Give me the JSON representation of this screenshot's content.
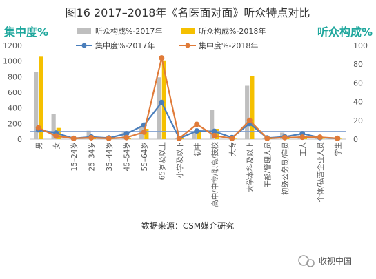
{
  "chart_data": {
    "type": "bar",
    "title": "图16 2017–2018年《名医面对面》听众特点对比",
    "left_axis_title": "集中度%",
    "right_axis_title": "听众构成%",
    "source": "数据来源：CSM媒介研究",
    "watermark": "收视中国",
    "categories": [
      "男",
      "女",
      "15–24岁",
      "25–34岁",
      "35–44岁",
      "45–54岁",
      "55–64岁",
      "65岁及以上",
      "小学及以下",
      "初中",
      "高中/中专/职高/技校",
      "大专",
      "大学本科及以上",
      "干部/管理人员",
      "初级公务员/雇员",
      "工人",
      "个体/私营企业人员",
      "学生"
    ],
    "ylim_left": [
      0,
      1200
    ],
    "yticks_left": [
      0,
      200,
      400,
      600,
      800,
      1000,
      1200
    ],
    "ylim_right": [
      0,
      100
    ],
    "yticks_right": [
      0,
      20,
      40,
      60,
      80,
      100
    ],
    "reference_line": 100,
    "bar_series": [
      {
        "name": "听众构成%-2017年",
        "color": "#bfbfbf",
        "axis": "right",
        "values": [
          72,
          27,
          0.5,
          9,
          1,
          7,
          14,
          66,
          1,
          7,
          31,
          0.5,
          57,
          1,
          7,
          4,
          1,
          0.5
        ]
      },
      {
        "name": "听众构成%-2018年",
        "color": "#f5c000",
        "axis": "right",
        "values": [
          88,
          12,
          0.2,
          1,
          0.5,
          1,
          11,
          84,
          1,
          9,
          11,
          0.5,
          67,
          1,
          2,
          3,
          0.5,
          0.5
        ]
      }
    ],
    "line_series": [
      {
        "name": "集中度%-2017年",
        "color": "#4a7ebb",
        "axis": "left",
        "values": [
          120,
          78,
          10,
          28,
          15,
          70,
          180,
          470,
          10,
          105,
          100,
          20,
          200,
          15,
          30,
          70,
          20,
          10
        ]
      },
      {
        "name": "集中度%-2018年",
        "color": "#e07b39",
        "axis": "left",
        "values": [
          145,
          40,
          10,
          18,
          10,
          20,
          90,
          1040,
          10,
          190,
          45,
          10,
          240,
          10,
          20,
          25,
          25,
          10
        ]
      }
    ],
    "grid": false,
    "legend_placement": "top"
  },
  "colors": {
    "title": "#333333",
    "axis_title": "#1fa79d",
    "axis_line": "#7f9fcf",
    "tick_text": "#595959"
  }
}
